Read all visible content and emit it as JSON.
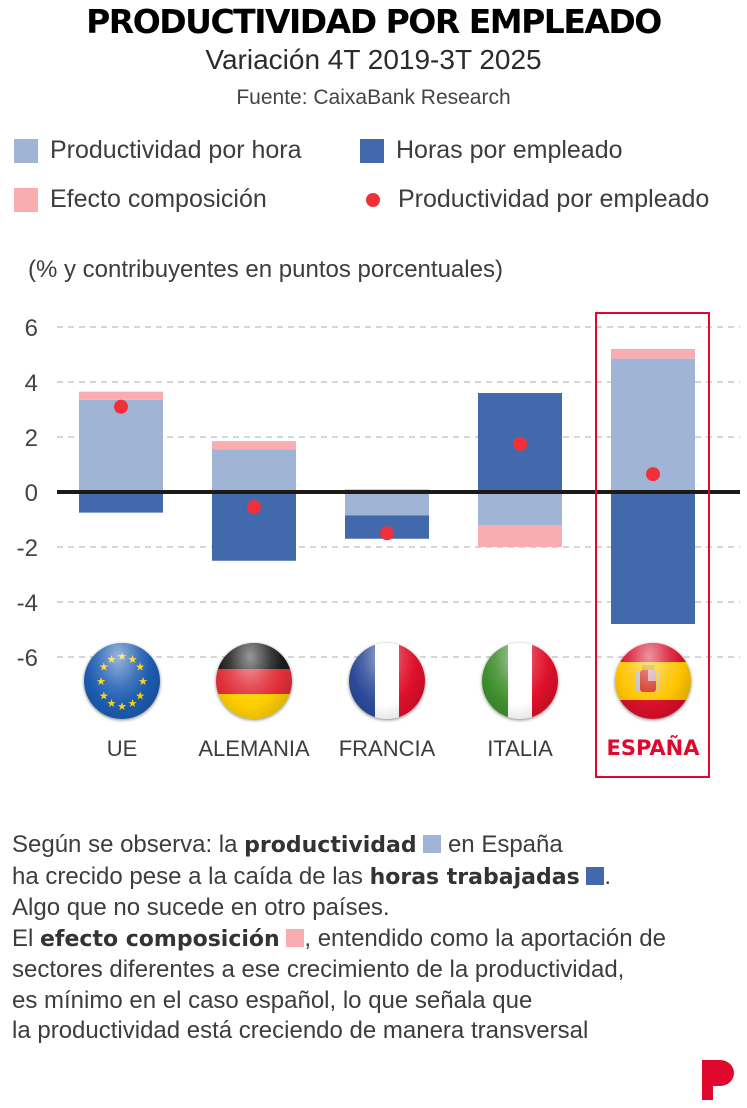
{
  "header": {
    "title": "PRODUCTIVIDAD POR EMPLEADO",
    "subtitle": "Variación 4T 2019-3T 2025",
    "source": "Fuente: CaixaBank Research"
  },
  "colors": {
    "productividad_hora": "#a0b4d5",
    "horas_empleado": "#4169ab",
    "efecto_composicion": "#faadb1",
    "productividad_empleado": "#f2303a",
    "zero_line": "#1e1a18",
    "grid": "#bdbdbd",
    "highlight": "#e0082d"
  },
  "legend": {
    "items": [
      {
        "label": "Productividad por hora",
        "kind": "swatch",
        "color_key": "productividad_hora"
      },
      {
        "label": "Horas por empleado",
        "kind": "swatch",
        "color_key": "horas_empleado"
      },
      {
        "label": "Efecto composición",
        "kind": "swatch",
        "color_key": "efecto_composicion"
      },
      {
        "label": "Productividad por empleado",
        "kind": "dot",
        "color_key": "productividad_empleado"
      }
    ]
  },
  "units_label": "(% y contribuyentes en puntos porcentuales)",
  "chart_data": {
    "type": "bar",
    "stacked": true,
    "title": "PRODUCTIVIDAD POR EMPLEADO",
    "subtitle": "Variación 4T 2019-3T 2025",
    "ylabel": "(% y contribuyentes en puntos porcentuales)",
    "xlabel": "",
    "ylim": [
      -6,
      6
    ],
    "yticks": [
      6,
      4,
      2,
      0,
      -2,
      -4,
      -6
    ],
    "grid": true,
    "legend_position": "top",
    "categories": [
      "UE",
      "ALEMANIA",
      "FRANCIA",
      "ITALIA",
      "ESPAÑA"
    ],
    "highlighted_category": "ESPAÑA",
    "series": [
      {
        "name": "Productividad por hora",
        "type": "bar",
        "values": [
          3.35,
          1.55,
          -0.85,
          -1.2,
          4.85
        ]
      },
      {
        "name": "Horas por empleado",
        "type": "bar",
        "values": [
          -0.75,
          -2.5,
          -0.85,
          3.6,
          -4.8
        ]
      },
      {
        "name": "Efecto composición",
        "type": "bar",
        "values": [
          0.3,
          0.3,
          0.1,
          -0.8,
          0.35
        ]
      },
      {
        "name": "Productividad por empleado",
        "type": "dot",
        "values": [
          3.1,
          -0.55,
          -1.5,
          1.75,
          0.65
        ]
      }
    ]
  },
  "flags": [
    {
      "country": "UE",
      "icon": "eu-flag-icon"
    },
    {
      "country": "ALEMANIA",
      "icon": "germany-flag-icon"
    },
    {
      "country": "FRANCIA",
      "icon": "france-flag-icon"
    },
    {
      "country": "ITALIA",
      "icon": "italy-flag-icon"
    },
    {
      "country": "ESPAÑA",
      "icon": "spain-flag-icon"
    }
  ],
  "note": {
    "line1_a": "Según se observa: la ",
    "line1_b": "productividad",
    "line1_c": " en España",
    "line2_a": "ha crecido pese a la caída de las ",
    "line2_b": "horas trabajadas",
    "line2_c": ".",
    "line3": "Algo que no sucede en otro países.",
    "line4_a": "El ",
    "line4_b": "efecto composición",
    "line4_c": ", entendido como la aportación de",
    "line5": "sectores diferentes a ese crecimiento de la productividad,",
    "line6": "es mínimo en el caso español, lo que señala que",
    "line7": "la productividad está creciendo de manera transversal"
  },
  "brand": {
    "logo": "p-logo-icon"
  }
}
